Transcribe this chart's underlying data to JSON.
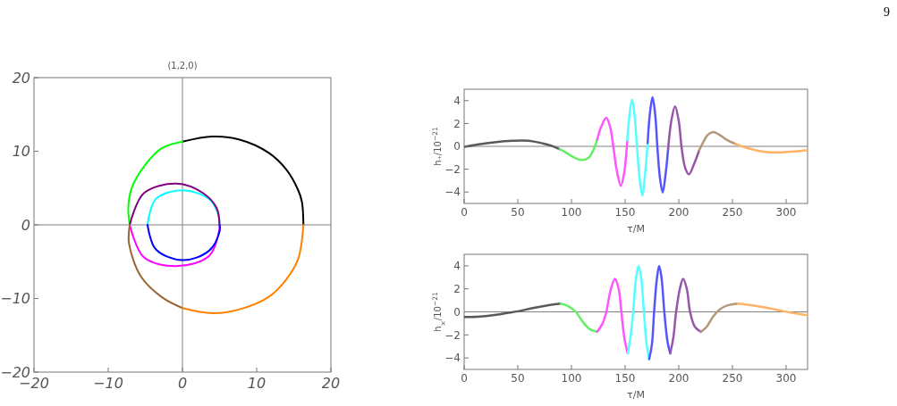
{
  "chart_data": [
    {
      "type": "line",
      "title": "(1,2,0)",
      "annotations": [
        "9"
      ],
      "xlim": [
        -20,
        20
      ],
      "ylim": [
        -20,
        20
      ],
      "xticks": [
        {
          "value": -20,
          "label": "−20"
        },
        {
          "value": -10,
          "label": "−10"
        },
        0,
        10,
        20
      ],
      "yticks": [
        {
          "value": -20,
          "label": "−20"
        },
        {
          "value": -10,
          "label": "−10"
        },
        0,
        10,
        20
      ],
      "ref_lines": [
        {
          "axis": "x",
          "value": 0,
          "color": "#808080"
        },
        {
          "axis": "y",
          "value": 0,
          "color": "#808080"
        }
      ],
      "series": [
        {
          "color": "#000000",
          "x": [
            16.3,
            16.1,
            15.6,
            14,
            11.6,
            7.6,
            4,
            0
          ],
          "values": [
            0,
            3.1,
            4.7,
            7.5,
            9.8,
            11.6,
            12,
            11.3
          ]
        },
        {
          "color": "#00ff00",
          "x": [
            0,
            -2.8,
            -5.2,
            -6.8,
            -7.3,
            -7.1
          ],
          "values": [
            11.3,
            10.4,
            7.9,
            5.1,
            2.3,
            0
          ]
        },
        {
          "color": "#ff00ff",
          "x": [
            -7.1,
            -5.2,
            -0.8,
            3.6,
            5,
            5
          ],
          "values": [
            0,
            -4.4,
            -5.6,
            -4.2,
            -0.5,
            0
          ]
        },
        {
          "color": "#00ffff",
          "x": [
            5,
            4.8,
            3.6,
            0,
            -3.6,
            -4.7
          ],
          "values": [
            0,
            1.5,
            3.5,
            4.7,
            3.5,
            0
          ]
        },
        {
          "color": "#0000ff",
          "x": [
            -4.7,
            -3.6,
            0,
            3.6,
            5,
            5
          ],
          "values": [
            0,
            -3.3,
            -4.8,
            -3.5,
            -0.9,
            0
          ]
        },
        {
          "color": "#800080",
          "x": [
            5,
            4.6,
            2.8,
            -0.8,
            -5.2,
            -7.1
          ],
          "values": [
            0,
            2.3,
            4.3,
            5.6,
            4.3,
            0
          ]
        },
        {
          "color": "#996633",
          "x": [
            -7.1,
            -7.2,
            -5.6,
            -2.8,
            0
          ],
          "values": [
            0,
            -2.5,
            -7,
            -9.8,
            -11.3
          ]
        },
        {
          "color": "#ff8000",
          "x": [
            0,
            4,
            7.6,
            11.6,
            14,
            15.6,
            16.3
          ],
          "values": [
            -11.3,
            -12,
            -11.5,
            -9.8,
            -7.4,
            -4.6,
            0
          ]
        }
      ]
    },
    {
      "type": "line",
      "xlabel": "τ/M",
      "ylabel": "h₊/10$^{−21}$",
      "xlim": [
        0,
        320
      ],
      "ylim": [
        -5,
        5
      ],
      "xticks": [
        0,
        50,
        100,
        150,
        200,
        250,
        300
      ],
      "yticks": [
        {
          "value": -4,
          "label": "−4"
        },
        {
          "value": -2,
          "label": "−2"
        },
        0,
        2,
        4
      ],
      "ref_lines": [
        {
          "axis": "y",
          "value": 0,
          "color": "#808080"
        }
      ],
      "series": [
        {
          "color": "#595959",
          "x": [
            0,
            15,
            30,
            45,
            55,
            65,
            75,
            82,
            89
          ],
          "values": [
            -0.05,
            0.2,
            0.38,
            0.48,
            0.5,
            0.42,
            0.22,
            0.03,
            -0.25
          ]
        },
        {
          "color": "#66ee66",
          "x": [
            89,
            95,
            102,
            110,
            116,
            120,
            124
          ],
          "values": [
            -0.25,
            -0.55,
            -0.95,
            -1.2,
            -1.0,
            -0.4,
            0.6
          ]
        },
        {
          "color": "#ff55ff",
          "x": [
            124,
            128,
            132.5,
            136,
            139,
            142,
            146,
            149,
            152
          ],
          "values": [
            0.6,
            1.8,
            2.5,
            1.7,
            0,
            -2.0,
            -3.45,
            -2.4,
            0.5
          ]
        },
        {
          "color": "#55ffff",
          "x": [
            152,
            154,
            156.5,
            159,
            161,
            163.5,
            166,
            168.5,
            171
          ],
          "values": [
            0.5,
            2.7,
            4.1,
            2.5,
            0,
            -2.8,
            -4.3,
            -2.5,
            0.3
          ]
        },
        {
          "color": "#5555ff",
          "x": [
            171,
            173,
            175.5,
            178,
            180,
            182.5,
            185,
            187.5,
            190
          ],
          "values": [
            0.3,
            2.8,
            4.3,
            2.8,
            0,
            -2.8,
            -4.05,
            -2.6,
            -0.3
          ]
        },
        {
          "color": "#9955aa",
          "x": [
            190,
            193,
            196.5,
            200,
            202.5,
            206,
            209.5,
            214,
            219
          ],
          "values": [
            -0.3,
            2.2,
            3.5,
            2.2,
            0,
            -1.9,
            -2.45,
            -1.6,
            -0.35
          ]
        },
        {
          "color": "#b39977",
          "x": [
            219,
            223,
            227,
            232,
            238,
            245,
            253
          ],
          "values": [
            -0.35,
            0.4,
            1.0,
            1.25,
            1.0,
            0.55,
            0.2
          ]
        },
        {
          "color": "#ffb366",
          "x": [
            253,
            262,
            272,
            282,
            295,
            308,
            320
          ],
          "values": [
            0.2,
            -0.1,
            -0.35,
            -0.5,
            -0.52,
            -0.45,
            -0.33
          ]
        }
      ]
    },
    {
      "type": "line",
      "xlabel": "τ/M",
      "ylabel": "h$_{×}$/10$^{−21}$",
      "xlim": [
        0,
        320
      ],
      "ylim": [
        -5,
        5
      ],
      "xticks": [
        0,
        50,
        100,
        150,
        200,
        250,
        300
      ],
      "yticks": [
        {
          "value": -4,
          "label": "−4"
        },
        {
          "value": -2,
          "label": "−2"
        },
        0,
        2,
        4
      ],
      "ref_lines": [
        {
          "axis": "y",
          "value": 0,
          "color": "#808080"
        }
      ],
      "series": [
        {
          "color": "#595959",
          "x": [
            0,
            15,
            30,
            40,
            50,
            65,
            80,
            90
          ],
          "values": [
            -0.45,
            -0.4,
            -0.25,
            -0.1,
            0.05,
            0.35,
            0.6,
            0.72
          ]
        },
        {
          "color": "#66ee66",
          "x": [
            90,
            97,
            104,
            110,
            117,
            124
          ],
          "values": [
            0.72,
            0.5,
            0,
            -0.8,
            -1.5,
            -1.73
          ]
        },
        {
          "color": "#ff55ff",
          "x": [
            124,
            129,
            132.5,
            136.5,
            140.5,
            144,
            146.5,
            149.5,
            152.5
          ],
          "values": [
            -1.73,
            -1.0,
            0,
            1.9,
            2.86,
            2.0,
            0,
            -2.4,
            -3.6
          ]
        },
        {
          "color": "#55ffff",
          "x": [
            152.5,
            155,
            157.5,
            160,
            162.6,
            165,
            167.5,
            170,
            172.4
          ],
          "values": [
            -3.6,
            -2.2,
            0,
            2.8,
            4.0,
            2.9,
            0,
            -2.8,
            -4.1
          ]
        },
        {
          "color": "#5555ff",
          "x": [
            172.4,
            175,
            177,
            179.5,
            181.7,
            184,
            186.5,
            189.5,
            192
          ],
          "values": [
            -4.1,
            -2.8,
            0,
            2.8,
            4.0,
            2.9,
            0,
            -2.6,
            -3.6
          ]
        },
        {
          "color": "#9955aa",
          "x": [
            192,
            195,
            197.5,
            201,
            204,
            207.5,
            210.5,
            215,
            220.6
          ],
          "values": [
            -3.6,
            -2.2,
            0,
            2.0,
            2.86,
            2.0,
            0,
            -1.3,
            -1.73
          ]
        },
        {
          "color": "#b39977",
          "x": [
            220.6,
            226,
            232,
            238,
            245,
            255
          ],
          "values": [
            -1.73,
            -1.3,
            -0.4,
            0.2,
            0.55,
            0.72
          ]
        },
        {
          "color": "#ffb366",
          "x": [
            255,
            270,
            285,
            298,
            310,
            320
          ],
          "values": [
            0.72,
            0.55,
            0.3,
            0.05,
            -0.15,
            -0.3
          ]
        }
      ]
    }
  ]
}
